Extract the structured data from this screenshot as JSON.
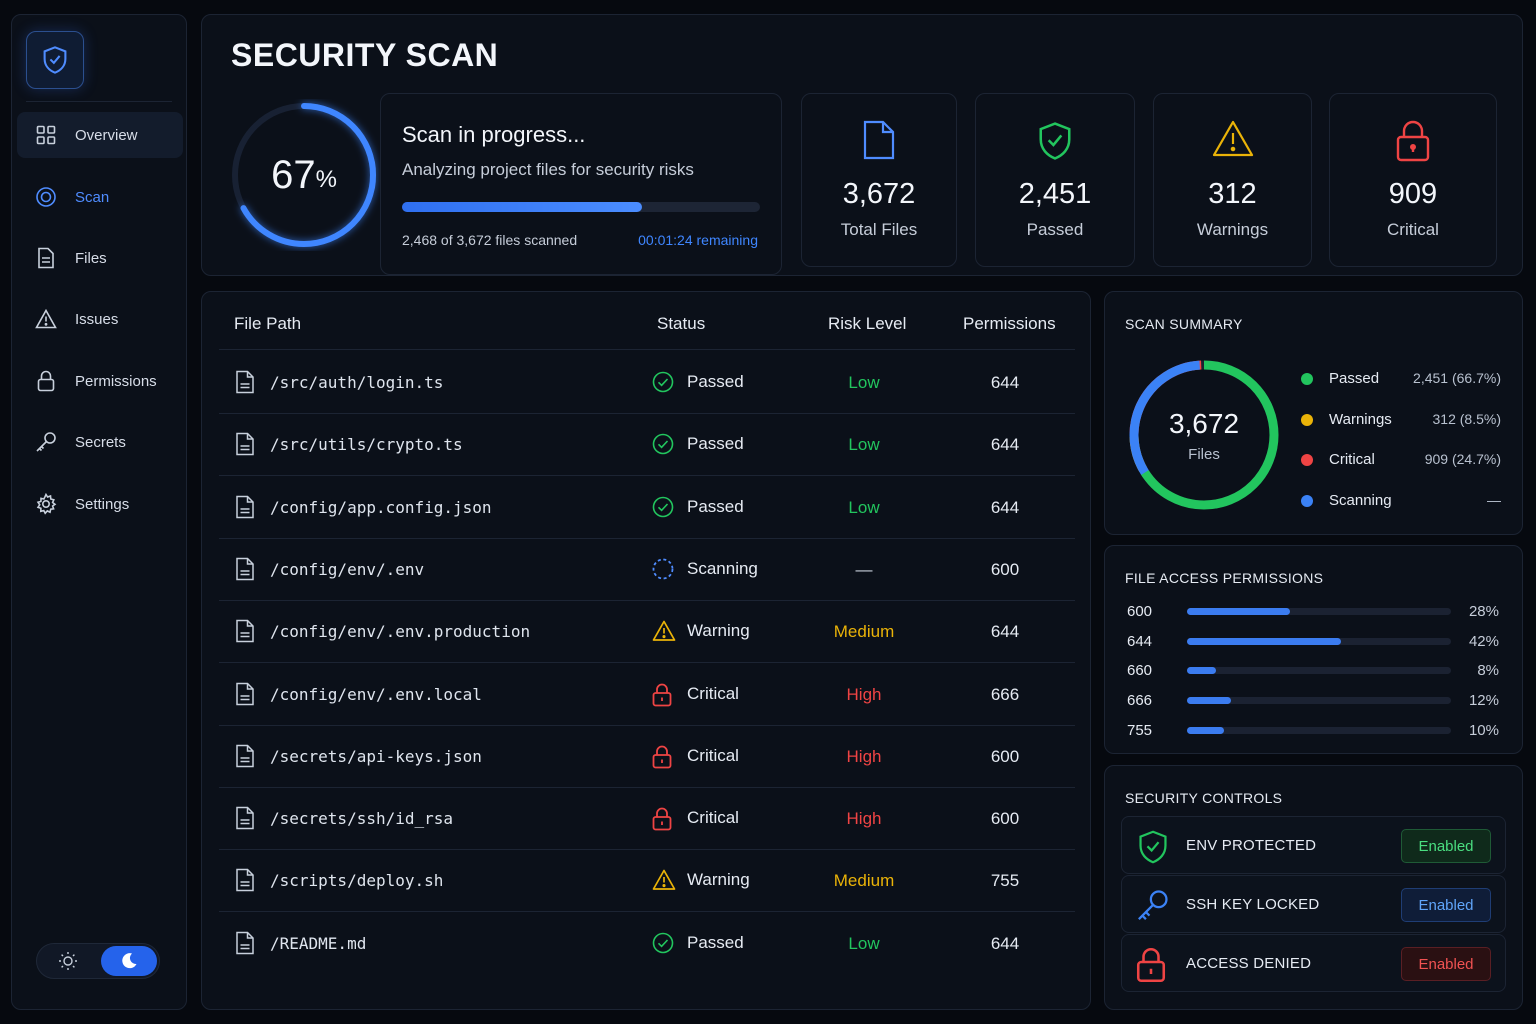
{
  "colors": {
    "accent": "#3b82f6",
    "passed": "#22c55e",
    "warning": "#eab308",
    "critical": "#ef4444"
  },
  "sidebar": {
    "logo_icon": "shield-check-icon",
    "items": [
      {
        "label": "Overview",
        "icon": "grid-icon"
      },
      {
        "label": "Scan",
        "icon": "scan-icon"
      },
      {
        "label": "Files",
        "icon": "file-icon"
      },
      {
        "label": "Issues",
        "icon": "warning-icon"
      },
      {
        "label": "Permissions",
        "icon": "lock-icon"
      },
      {
        "label": "Secrets",
        "icon": "key-icon"
      },
      {
        "label": "Settings",
        "icon": "gear-icon"
      }
    ],
    "theme": {
      "selected": "dark",
      "light_icon": "sun-icon",
      "dark_icon": "moon-icon"
    }
  },
  "header": {
    "title": "SECURITY SCAN",
    "progress": {
      "percent": 67,
      "percent_value": "67",
      "percent_unit": "%",
      "title": "Scan in progress...",
      "subtitle": "Analyzing project files for security risks",
      "files_scanned": "2,468 of 3,672 files scanned",
      "remaining": "00:01:24 remaining"
    },
    "stats": [
      {
        "value": "3,672",
        "label": "Total Files",
        "icon": "file-icon"
      },
      {
        "value": "2,451",
        "label": "Passed",
        "icon": "shield-check-icon"
      },
      {
        "value": "312",
        "label": "Warnings",
        "icon": "warning-icon"
      },
      {
        "value": "909",
        "label": "Critical",
        "icon": "lock-icon"
      }
    ]
  },
  "table": {
    "columns": [
      "File Path",
      "Status",
      "Risk Level",
      "Permissions"
    ],
    "rows": [
      {
        "path": "/src/auth/login.ts",
        "status": "Passed",
        "risk": "Low",
        "perm": "644"
      },
      {
        "path": "/src/utils/crypto.ts",
        "status": "Passed",
        "risk": "Low",
        "perm": "644"
      },
      {
        "path": "/config/app.config.json",
        "status": "Passed",
        "risk": "Low",
        "perm": "644"
      },
      {
        "path": "/config/env/.env",
        "status": "Scanning",
        "risk": "—",
        "perm": "600"
      },
      {
        "path": "/config/env/.env.production",
        "status": "Warning",
        "risk": "Medium",
        "perm": "644"
      },
      {
        "path": "/config/env/.env.local",
        "status": "Critical",
        "risk": "High",
        "perm": "666"
      },
      {
        "path": "/secrets/api-keys.json",
        "status": "Critical",
        "risk": "High",
        "perm": "600"
      },
      {
        "path": "/secrets/ssh/id_rsa",
        "status": "Critical",
        "risk": "High",
        "perm": "600"
      },
      {
        "path": "/scripts/deploy.sh",
        "status": "Warning",
        "risk": "Medium",
        "perm": "755"
      },
      {
        "path": "/README.md",
        "status": "Passed",
        "risk": "Low",
        "perm": "644"
      }
    ]
  },
  "summary": {
    "title": "SCAN SUMMARY",
    "total": "3,672",
    "total_label": "Files",
    "legend": [
      {
        "label": "Passed",
        "value": "2,451 (66.7%)",
        "color": "#22c55e",
        "share": 66.7
      },
      {
        "label": "Warnings",
        "value": "312 (8.5%)",
        "color": "#eab308",
        "share": 8.5
      },
      {
        "label": "Critical",
        "value": "909 (24.7%)",
        "color": "#ef4444",
        "share": 24.7
      },
      {
        "label": "Scanning",
        "value": "—",
        "color": "#3b82f6",
        "share": 0
      }
    ]
  },
  "permissions": {
    "title": "FILE ACCESS PERMISSIONS",
    "rows": [
      {
        "code": "600",
        "pct": "28%",
        "value": 28
      },
      {
        "code": "644",
        "pct": "42%",
        "value": 42
      },
      {
        "code": "660",
        "pct": "8%",
        "value": 8
      },
      {
        "code": "666",
        "pct": "12%",
        "value": 12
      },
      {
        "code": "755",
        "pct": "10%",
        "value": 10
      }
    ]
  },
  "controls": {
    "title": "SECURITY CONTROLS",
    "items": [
      {
        "label": "ENV PROTECTED",
        "badge": "Enabled",
        "icon": "shield-check-icon",
        "color": "#22c55e"
      },
      {
        "label": "SSH KEY LOCKED",
        "badge": "Enabled",
        "icon": "key-icon",
        "color": "#3b82f6"
      },
      {
        "label": "ACCESS DENIED",
        "badge": "Enabled",
        "icon": "lock-icon",
        "color": "#ef4444"
      }
    ]
  }
}
